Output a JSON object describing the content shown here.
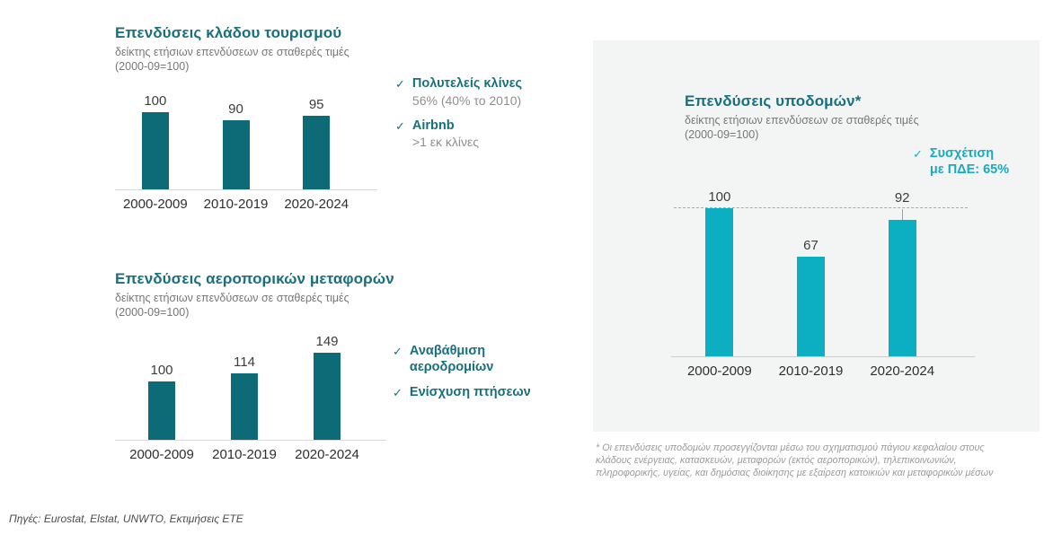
{
  "slide": {
    "sources": "Πηγές: Eurostat, Elstat, UNWTO, Εκτιμήσεις ΕΤΕ",
    "footnote": "* Οι επενδύσεις υποδομών προσεγγίζονται μέσω του σχηματισμού πάγιου κεφαλαίου στους κλάδους ενέργειας, κατασκευών, μεταφορών (εκτός αεροπορικών), τηλεπικοινωνιών, πληροφορικής, υγείας, και δημόσιας διοίκησης με εξαίρεση κατοικιών και μεταφορικών μέσων"
  },
  "icons": {
    "check": "✓"
  },
  "colors": {
    "teal_dark": "#0d6a77",
    "cyan": "#0cafc1",
    "panel_bg": "#f3f5f5",
    "title_teal": "#17707e",
    "annotation_cyan": "#18abc0"
  },
  "chart_data": [
    {
      "type": "bar",
      "title": "Επενδύσεις κλάδου τουρισμού",
      "subtitle": "δείκτης ετήσιων επενδύσεων σε σταθερές τιμές",
      "subtitle2": "(2000-09=100)",
      "categories": [
        "2000-2009",
        "2010-2019",
        "2020-2024"
      ],
      "values": [
        100,
        90,
        95
      ],
      "bar_color": "#0d6a77",
      "ylim": [
        0,
        110
      ],
      "grid": false,
      "annotations": [
        {
          "label": "Πολυτελείς κλίνες",
          "detail": "56% (40% το 2010)"
        },
        {
          "label": "Airbnb",
          "detail": ">1 εκ κλίνες"
        }
      ]
    },
    {
      "type": "bar",
      "title": "Επενδύσεις αεροπορικών μεταφορών",
      "subtitle": "δείκτης ετήσιων επενδύσεων σε σταθερές τιμές",
      "subtitle2": "(2000-09=100)",
      "categories": [
        "2000-2009",
        "2010-2019",
        "2020-2024"
      ],
      "values": [
        100,
        114,
        149
      ],
      "bar_color": "#0d6a77",
      "ylim": [
        0,
        160
      ],
      "grid": false,
      "annotations": [
        {
          "label": "Αναβάθμιση\nαεροδρομίων",
          "detail": ""
        },
        {
          "label": "Ενίσχυση πτήσεων",
          "detail": ""
        }
      ]
    },
    {
      "type": "bar",
      "title": "Επενδύσεις υποδομών*",
      "subtitle": "δείκτης ετήσιων επενδύσεων σε σταθερές τιμές",
      "subtitle2": "(2000-09=100)",
      "categories": [
        "2000-2009",
        "2010-2019",
        "2020-2024"
      ],
      "values": [
        100,
        67,
        92
      ],
      "bar_color": "#0cafc1",
      "ylim": [
        0,
        110
      ],
      "grid": false,
      "reference_line": 100,
      "reference_line_style": "dashed",
      "annotations": [
        {
          "label": "Συσχέτιση\nμε ΠΔΕ: 65%",
          "detail": ""
        }
      ]
    }
  ]
}
